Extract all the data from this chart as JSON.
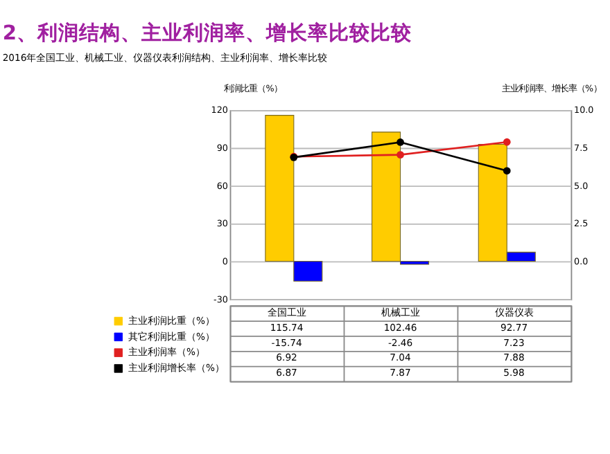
{
  "chart_data": {
    "type": "bar",
    "title": "2、利润结构、主业利润率、增长率比较比较",
    "subtitle": "2016年全国工业、机械工业、仪器仪表利润结构、主业利润率、增长率比较",
    "ylabel": "利润比重（%）",
    "y2label": "主业利润率、增长率（%）",
    "categories": [
      "全国工业",
      "机械工业",
      "仪器仪表"
    ],
    "series": [
      {
        "name": "主业利润比重（%）",
        "color": "#ffcc00",
        "values": [
          115.74,
          102.46,
          92.77
        ]
      },
      {
        "name": "其它利润比重（%）",
        "color": "#0000ff",
        "values": [
          -15.74,
          -2.46,
          7.23
        ]
      },
      {
        "name": "主业利润率（%）",
        "type": "line",
        "axis": "y2",
        "color": "#e02020",
        "values": [
          6.92,
          7.04,
          7.88
        ]
      },
      {
        "name": "主业利润增长率（%）",
        "type": "line",
        "axis": "y2",
        "color": "#000000",
        "values": [
          6.87,
          7.87,
          5.98
        ]
      }
    ],
    "ylim": [
      -30,
      120
    ],
    "yticks": [
      -30,
      0,
      30,
      60,
      90,
      120
    ],
    "y2lim": [
      -2.5,
      10
    ],
    "y2ticks": [
      {
        "value": 0,
        "label": "0.0"
      },
      {
        "value": 2.5,
        "label": "2.5"
      },
      {
        "value": 5,
        "label": "5.0"
      },
      {
        "value": 7.5,
        "label": "7.5"
      },
      {
        "value": 10,
        "label": "10.0"
      }
    ],
    "grid": "y",
    "legend": "bottom",
    "marker": "circle",
    "line_style": "solid",
    "data_labels": true
  }
}
